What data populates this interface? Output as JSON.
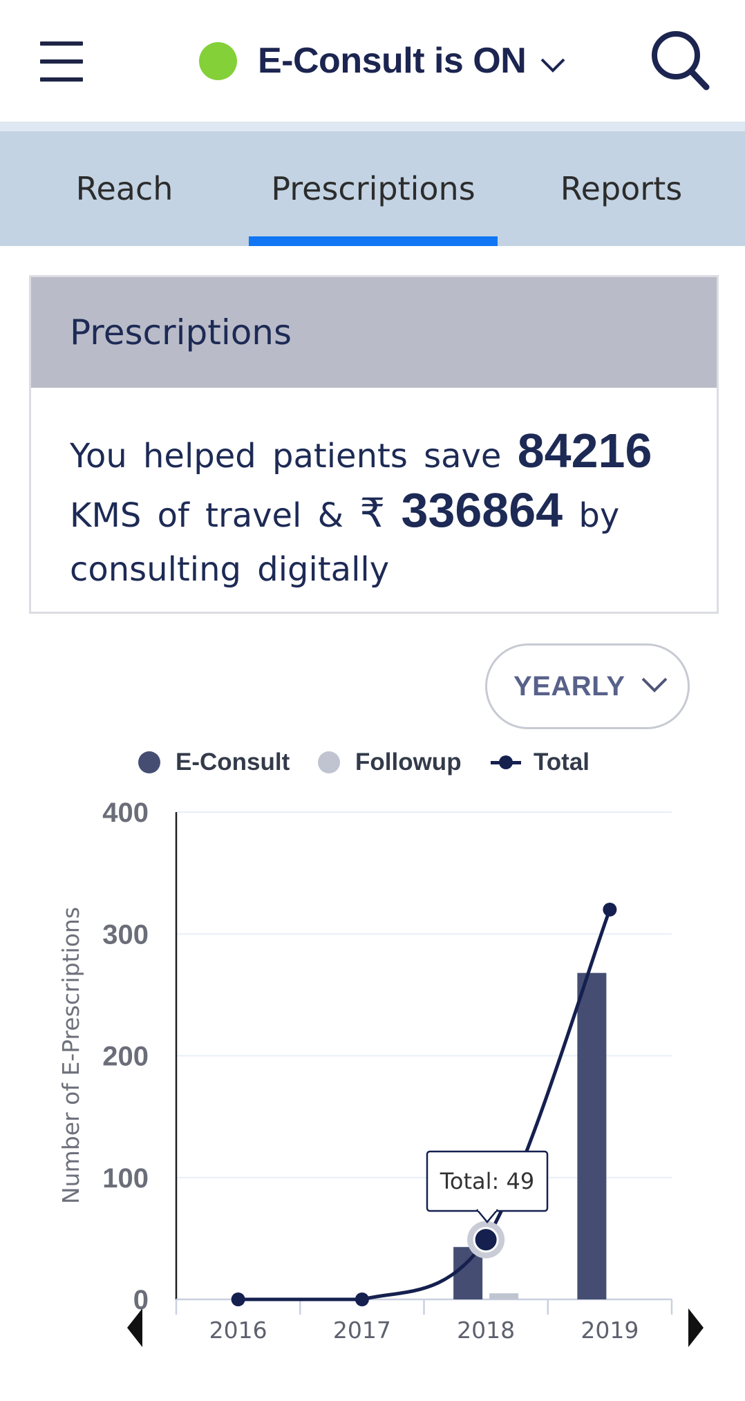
{
  "header": {
    "status_text": "E-Consult is ON",
    "status_color": "#84d038",
    "menu_icon": "hamburger-menu-icon",
    "search_icon": "search-icon"
  },
  "tabs": [
    {
      "label": "Reach",
      "active": false
    },
    {
      "label": "Prescriptions",
      "active": true
    },
    {
      "label": "Reports",
      "active": false
    }
  ],
  "card": {
    "title": "Prescriptions",
    "text_1": "You helped patients save",
    "km_value": "84216",
    "text_2": "KMS of travel &",
    "currency_symbol": "₹",
    "money_value": "336864",
    "text_3": "by",
    "text_4": "consulting digitally"
  },
  "period_select": {
    "selected": "YEARLY"
  },
  "chart_data": {
    "type": "bar",
    "categories": [
      "2016",
      "2017",
      "2018",
      "2019"
    ],
    "series": [
      {
        "name": "E-Consult",
        "type": "bar",
        "color": "#454e72",
        "values": [
          0,
          0,
          43,
          268
        ]
      },
      {
        "name": "Followup",
        "type": "bar",
        "color": "#c0c4d1",
        "values": [
          0,
          0,
          5,
          0
        ]
      },
      {
        "name": "Total",
        "type": "line",
        "color": "#15204f",
        "values": [
          0,
          0,
          49,
          320
        ]
      }
    ],
    "ylabel": "Number of E-Prescriptions",
    "ylim": [
      0,
      400
    ],
    "yticks": [
      0,
      100,
      200,
      300,
      400
    ],
    "grid": true,
    "legend_position": "top",
    "tooltip": {
      "text": "Total: 49",
      "category": "2018"
    }
  },
  "nav": {
    "prev_icon": "triangle-left-icon",
    "next_icon": "triangle-right-icon"
  }
}
